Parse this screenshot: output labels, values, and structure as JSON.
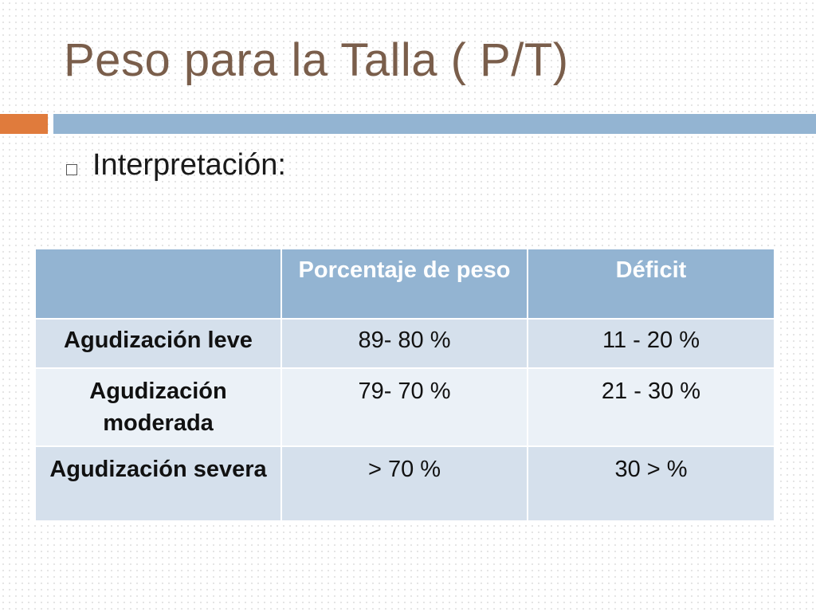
{
  "slide": {
    "title": "Peso para la Talla ( P/T)",
    "bullet": "Interpretación:"
  },
  "table": {
    "headers": [
      "",
      "Porcentaje de peso",
      "Déficit"
    ],
    "rows": [
      {
        "label": "Agudización leve",
        "percent": "89- 80 %",
        "deficit": "11 - 20 %"
      },
      {
        "label": "Agudización moderada",
        "percent": "79- 70 %",
        "deficit": "21 - 30 %"
      },
      {
        "label": "Agudización severa",
        "percent": "> 70 %",
        "deficit": "30 > %"
      }
    ]
  },
  "colors": {
    "title": "#7a5e4b",
    "accent_bar": "#e07b3c",
    "header_bar": "#93b4d2",
    "row_dark": "#d5e0ec",
    "row_light": "#ebf1f7"
  }
}
